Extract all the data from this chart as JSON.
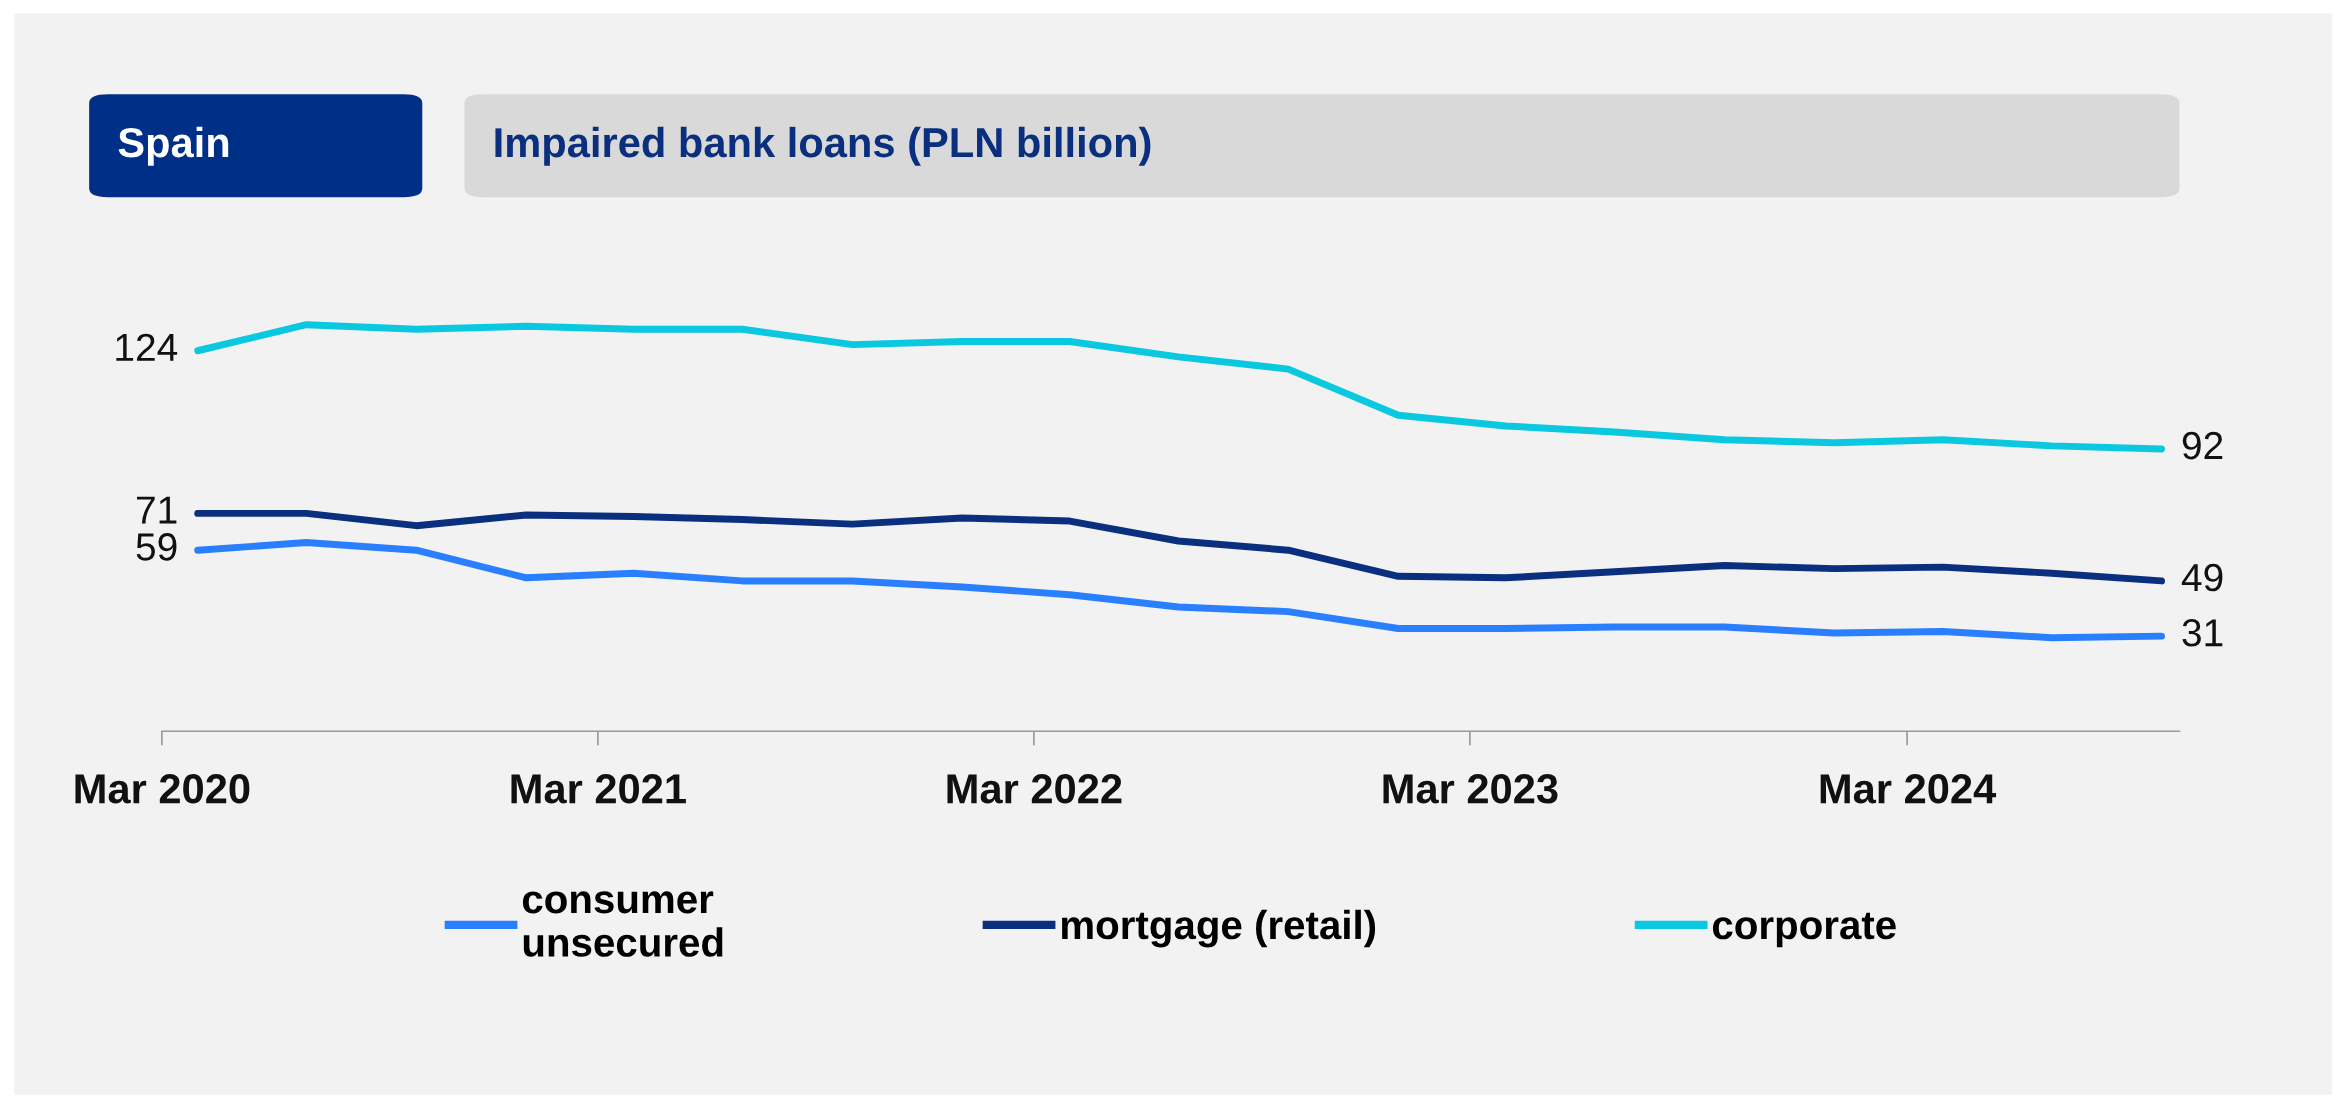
{
  "chart_data": {
    "type": "line",
    "title": "Impaired bank loans (PLN billion)",
    "subtitle": "Spain",
    "x": [
      "2020-03-31",
      "2020-06-30",
      "2020-09-30",
      "2020-12-31",
      "2021-03-31",
      "2021-06-30",
      "2021-09-30",
      "2021-12-31",
      "2022-03-31",
      "2022-06-30",
      "2022-09-30",
      "2022-12-31",
      "2023-03-31",
      "2023-06-30",
      "2023-09-30",
      "2023-12-31",
      "2024-03-31",
      "2024-06-30",
      "2024-09-30"
    ],
    "series": [
      {
        "name": "consumer\nunsecured",
        "color": "#2a7fff",
        "values": [
          59,
          61.5,
          59,
          50,
          51.5,
          49,
          49,
          47,
          44.5,
          40.5,
          39,
          33.5,
          33.5,
          34,
          34,
          32,
          32.5,
          30.5,
          31
        ],
        "value_labels": [
          "59",
          null,
          null,
          null,
          null,
          null,
          null,
          null,
          null,
          null,
          null,
          null,
          null,
          null,
          null,
          null,
          null,
          null,
          "31"
        ]
      },
      {
        "name": "mortgage (retail)",
        "color": "#0a2f7e",
        "values": [
          71,
          71,
          67,
          70.5,
          70,
          69,
          67.5,
          69.5,
          68.5,
          62,
          59,
          50.5,
          50,
          52,
          54,
          53,
          53.5,
          51.5,
          49
        ],
        "value_labels": [
          "71",
          null,
          null,
          null,
          null,
          null,
          null,
          null,
          null,
          null,
          null,
          null,
          null,
          null,
          null,
          null,
          null,
          null,
          "49"
        ]
      },
      {
        "name": "corporate",
        "color": "#0ac8e0",
        "values": [
          124,
          132.5,
          131,
          132,
          131,
          131,
          126,
          127,
          127,
          122,
          118,
          103,
          99.5,
          97.5,
          95,
          94,
          95,
          93,
          92
        ],
        "value_labels": [
          "124",
          null,
          null,
          null,
          null,
          null,
          null,
          null,
          null,
          null,
          null,
          null,
          null,
          null,
          null,
          null,
          null,
          null,
          "92"
        ]
      }
    ],
    "xlim": [
      "2020-03-01",
      "2024-10-15"
    ],
    "xticks": [
      {
        "value": "2020-03-01",
        "label": "Mar 2020"
      },
      {
        "value": "2021-03-01",
        "label": "Mar 2021"
      },
      {
        "value": "2022-03-01",
        "label": "Mar 2022"
      },
      {
        "value": "2023-03-01",
        "label": "Mar 2023"
      },
      {
        "value": "2024-03-01",
        "label": "Mar 2024"
      }
    ],
    "grid": false,
    "legend": "bottom",
    "marker": "none",
    "line_style": "solid"
  }
}
